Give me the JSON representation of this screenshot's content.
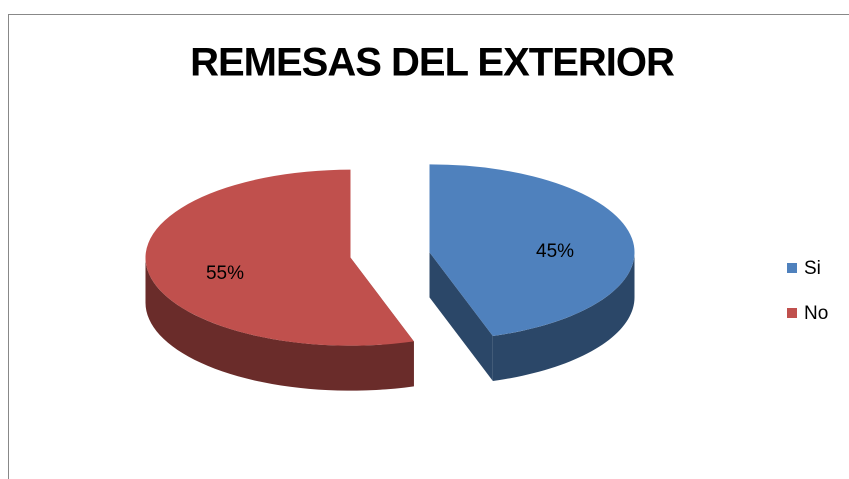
{
  "chart_data": {
    "type": "pie",
    "title": "REMESAS DEL EXTERIOR",
    "categories": [
      "Si",
      "No"
    ],
    "values": [
      45,
      55
    ],
    "value_labels": [
      "45%",
      "55%"
    ],
    "colors": [
      "#4f81bd",
      "#c0504d"
    ],
    "legend": "right"
  }
}
